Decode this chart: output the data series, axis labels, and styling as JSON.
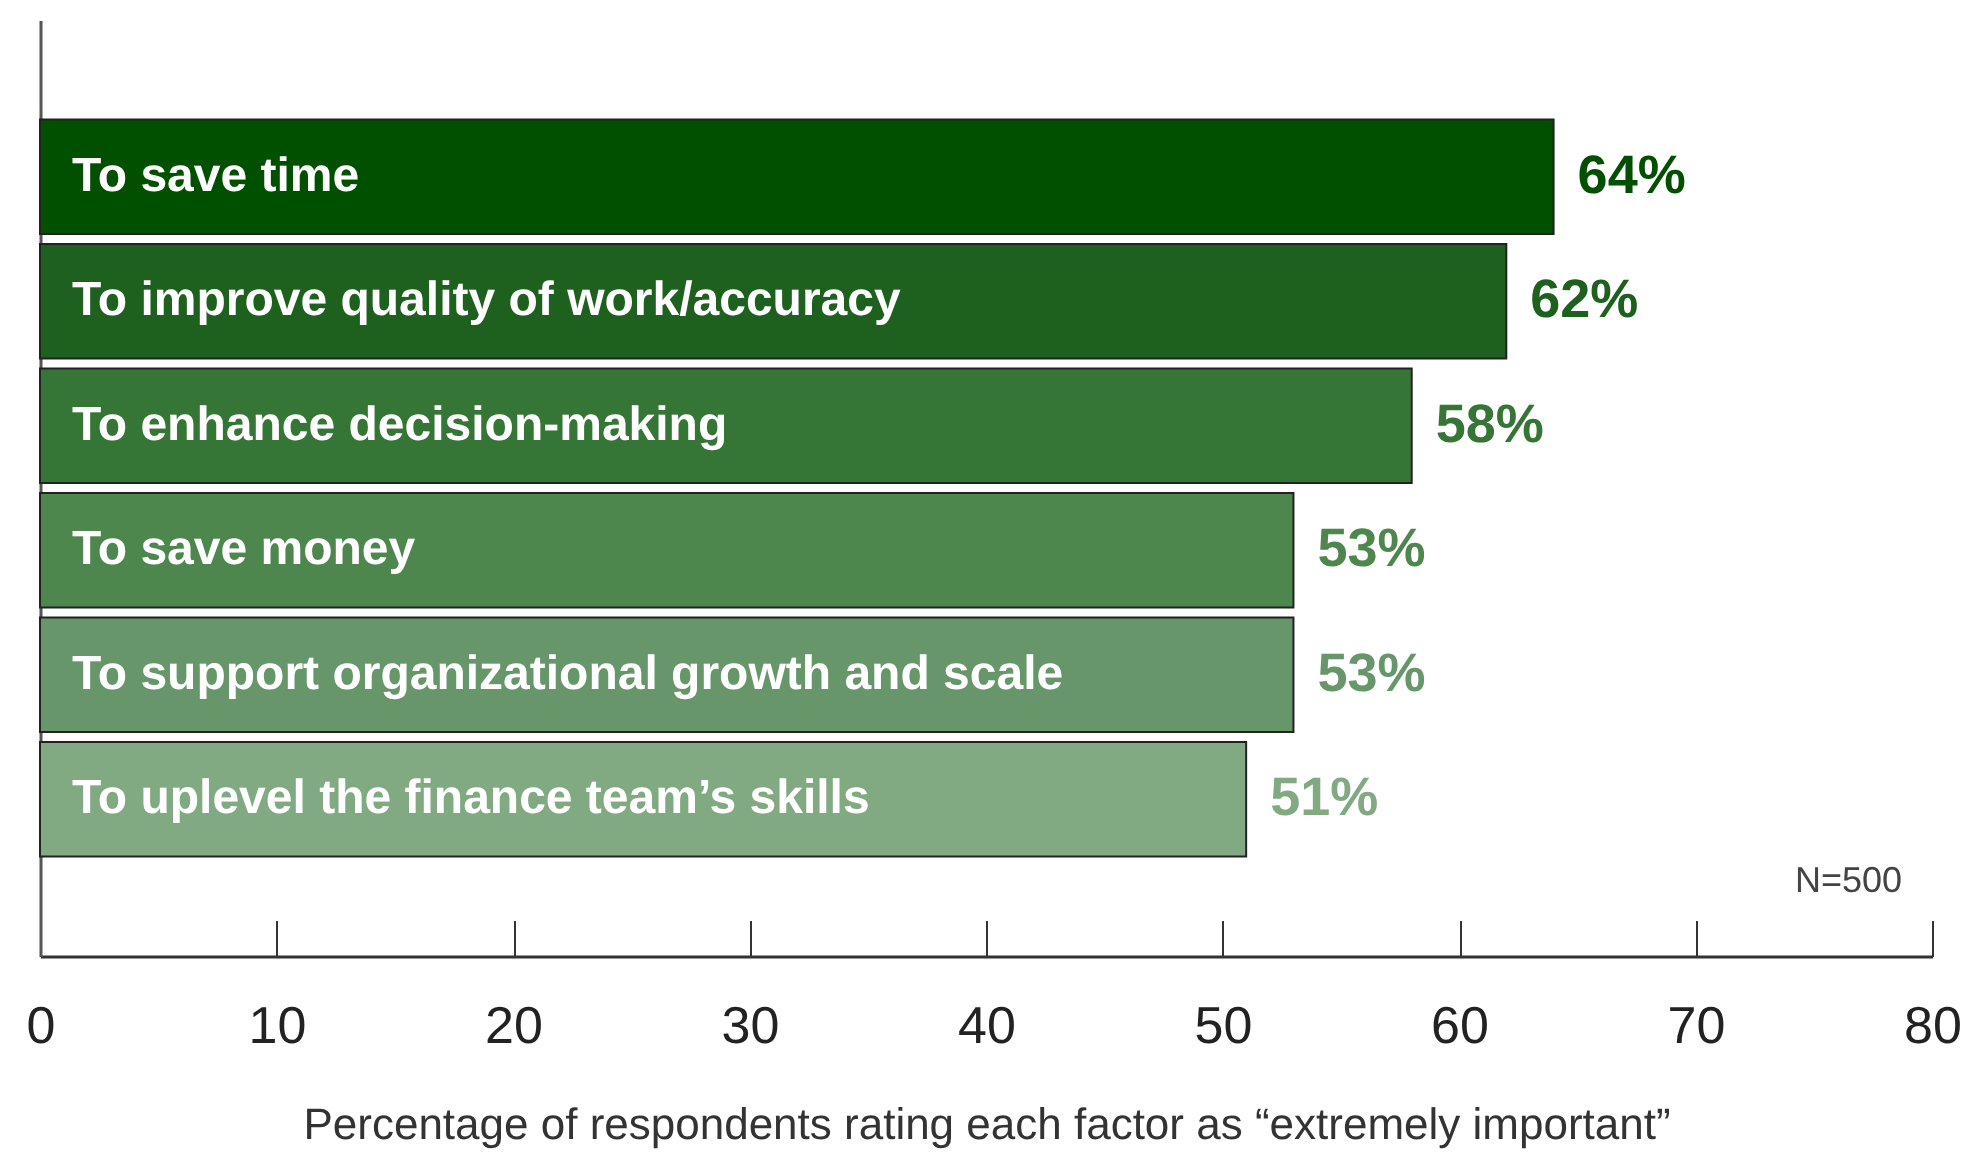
{
  "chart_data": {
    "type": "bar",
    "orientation": "horizontal",
    "categories": [
      "To save time",
      "To improve quality of work/accuracy",
      "To enhance decision-making",
      "To save money",
      "To support organizational growth and scale",
      "To uplevel the finance team’s skills"
    ],
    "values": [
      64,
      62,
      58,
      53,
      53,
      51
    ],
    "value_labels": [
      "64%",
      "62%",
      "58%",
      "53%",
      "53%",
      "51%"
    ],
    "colors": [
      "#005000",
      "#1e601e",
      "#357535",
      "#4e874e",
      "#66966a",
      "#82aa82"
    ],
    "xlim": [
      0,
      80
    ],
    "xticks": [
      0,
      10,
      20,
      30,
      40,
      50,
      60,
      70,
      80
    ],
    "xlabel": "Percentage of respondents rating each factor as “extremely important”",
    "annotations": [
      "N=500"
    ],
    "tick_labels": "x",
    "grid": false
  }
}
